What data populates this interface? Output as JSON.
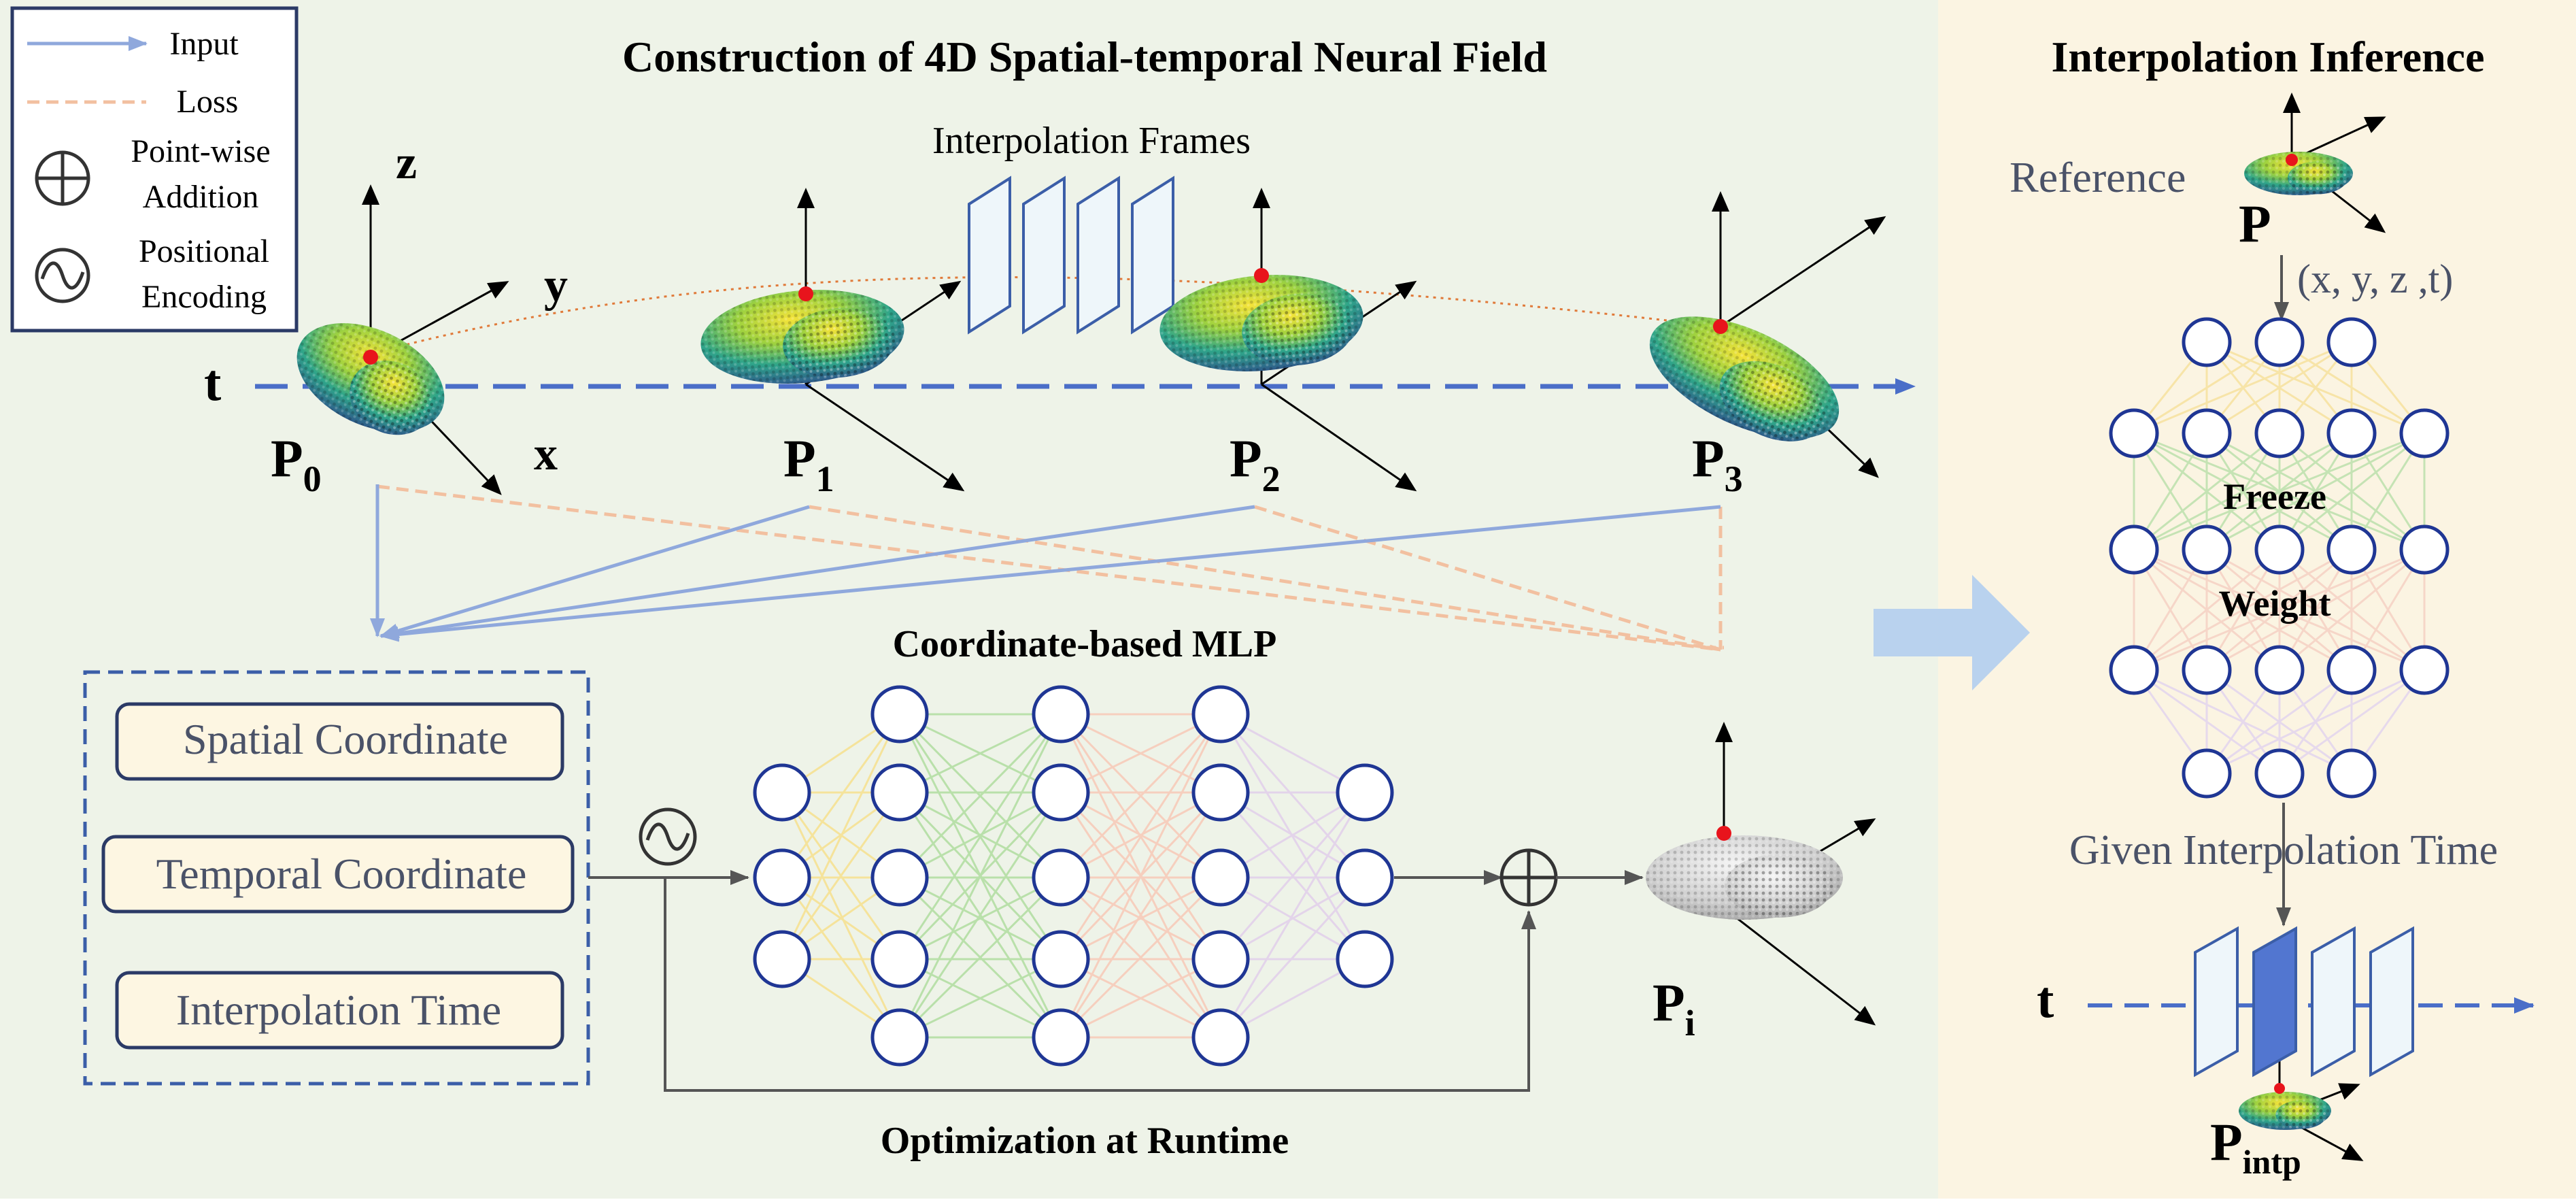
{
  "main_title": "Construction of 4D Spatial-temporal Neural Field",
  "right_title": "Interpolation Inference",
  "legend": {
    "input": "Input",
    "loss": "Loss",
    "addition_line1": "Point-wise",
    "addition_line2": "Addition",
    "encoding_line1": "Positional",
    "encoding_line2": "Encoding"
  },
  "axes": {
    "z": "z",
    "y": "y",
    "x": "x",
    "t": "t"
  },
  "interpolation_frames": "Interpolation Frames",
  "frames": {
    "p0": {
      "main": "P",
      "sub": "0"
    },
    "p1": {
      "main": "P",
      "sub": "1"
    },
    "p2": {
      "main": "P",
      "sub": "2"
    },
    "p3": {
      "main": "P",
      "sub": "3"
    },
    "pi": {
      "main": "P",
      "sub": "i"
    },
    "pintp": {
      "main": "P",
      "sub": "intp"
    }
  },
  "inputs": {
    "spatial": "Spatial Coordinate",
    "temporal": "Temporal Coordinate",
    "interp_time": "Interpolation Time"
  },
  "mlp_title": "Coordinate-based MLP",
  "optimization": "Optimization at Runtime",
  "right": {
    "reference": "Reference",
    "p_label": "P",
    "coords": "(x, y, z ,t)",
    "freeze": "Freeze",
    "weight": "Weight",
    "given_time": "Given Interpolation Time",
    "t": "t"
  },
  "colors": {
    "left_bg": "#eef3e8",
    "right_bg": "#fbf4e2",
    "input_line": "#8fa8dc",
    "loss_line": "#f2c0a0",
    "node_stroke": "#1f3694",
    "time_axis": "#4a6ec8",
    "box_fill": "#fdf6e2",
    "box_stroke": "#2b3a66",
    "label_gray": "#4a5268",
    "frame_fill": "#eef6fa",
    "frame_stroke": "#3b5ea8",
    "frame_highlight": "#5276d0"
  }
}
